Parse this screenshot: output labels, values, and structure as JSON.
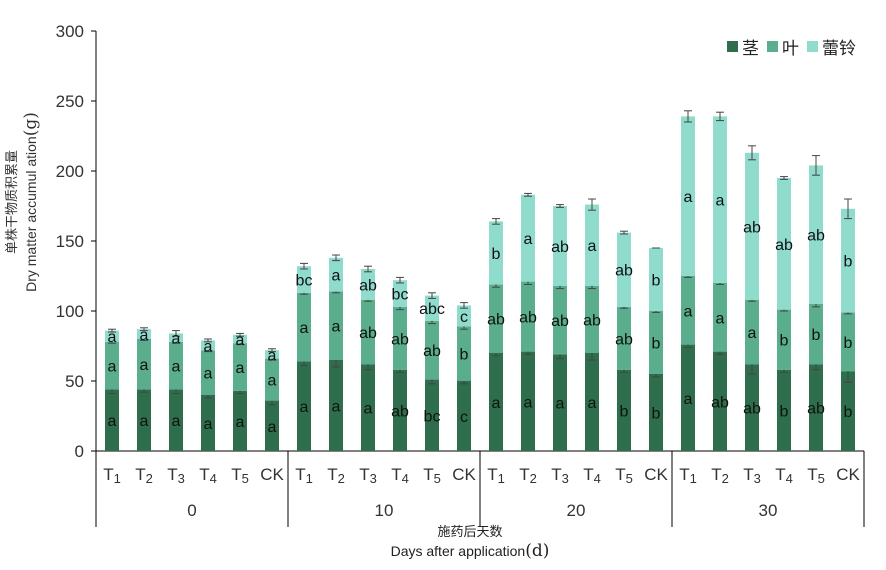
{
  "chart_data": {
    "type": "bar",
    "stacked": true,
    "ylabel_zh": "单株干物质积累量",
    "ylabel_en": "Dry matter accumul ation",
    "ylabel_unit": "(g)",
    "xlabel_zh": "施药后天数",
    "xlabel_en": "Days after application",
    "xlabel_unit": "(d)",
    "ylim": [
      0,
      300
    ],
    "yticks": [
      "0",
      "50",
      "100",
      "150",
      "200",
      "250",
      "300"
    ],
    "groups": [
      "0",
      "10",
      "20",
      "30"
    ],
    "categories": [
      "T1",
      "T2",
      "T3",
      "T4",
      "T5",
      "CK"
    ],
    "legend_position": "top-right",
    "series": [
      {
        "name": "茎",
        "color": "#2e6e4d",
        "values": [
          [
            44,
            44,
            44,
            40,
            43,
            36
          ],
          [
            64,
            65,
            62,
            58,
            51,
            50
          ],
          [
            70,
            71,
            69,
            70,
            58,
            55
          ],
          [
            76,
            71,
            62,
            58,
            62,
            57
          ]
        ],
        "errors": [
          [
            3,
            2,
            3,
            2,
            2,
            3
          ],
          [
            3,
            5,
            4,
            2,
            3,
            2
          ],
          [
            2,
            2,
            3,
            5,
            2,
            2
          ],
          [
            2,
            2,
            7,
            2,
            4,
            8
          ]
        ],
        "labels": [
          [
            "a",
            "a",
            "a",
            "a",
            "a",
            "a"
          ],
          [
            "a",
            "a",
            "a",
            "ab",
            "bc",
            "c"
          ],
          [
            "a",
            "a",
            "a",
            "a",
            "b",
            "b"
          ],
          [
            "a",
            "ab",
            "ab",
            "b",
            "ab",
            "b"
          ]
        ]
      },
      {
        "name": "叶",
        "color": "#5aae8e",
        "values": [
          [
            34,
            36,
            34,
            32,
            34,
            30
          ],
          [
            49,
            49,
            46,
            45,
            42,
            39
          ],
          [
            49,
            50,
            49,
            48,
            45,
            45
          ],
          [
            49,
            49,
            46,
            43,
            43,
            42
          ]
        ],
        "errors": [
          [
            1,
            1,
            1,
            1,
            1,
            1
          ],
          [
            1,
            1,
            1,
            2,
            2,
            2
          ],
          [
            2,
            2,
            2,
            2,
            1,
            1
          ],
          [
            1,
            1,
            1,
            1,
            2,
            1
          ]
        ],
        "labels": [
          [
            "a",
            "a",
            "a",
            "a",
            "a",
            "a"
          ],
          [
            "a",
            "a",
            "ab",
            "ab",
            "ab",
            "b"
          ],
          [
            "ab",
            "ab",
            "ab",
            "ab",
            "ab",
            "b"
          ],
          [
            "a",
            "a",
            "a",
            "b",
            "b",
            "b"
          ]
        ]
      },
      {
        "name": "蕾铃",
        "color": "#8fdccd",
        "values": [
          [
            8,
            7,
            6,
            7,
            6,
            6
          ],
          [
            19,
            24,
            22,
            19,
            18,
            15
          ],
          [
            45,
            62,
            57,
            58,
            53,
            45
          ],
          [
            114,
            119,
            105,
            94,
            99,
            74
          ]
        ],
        "errors": [
          [
            1,
            1,
            2,
            1,
            1,
            1
          ],
          [
            2,
            2,
            2,
            2,
            2,
            2
          ],
          [
            2,
            1,
            1,
            4,
            1,
            0
          ],
          [
            4,
            3,
            5,
            1,
            7,
            7
          ]
        ],
        "labels": [
          [
            "a",
            "a",
            "a",
            "a",
            "a",
            "a"
          ],
          [
            "bc",
            "a",
            "ab",
            "bc",
            "abc",
            "c"
          ],
          [
            "b",
            "a",
            "ab",
            "a",
            "ab",
            "b"
          ],
          [
            "a",
            "a",
            "ab",
            "ab",
            "ab",
            "b"
          ]
        ]
      }
    ]
  }
}
